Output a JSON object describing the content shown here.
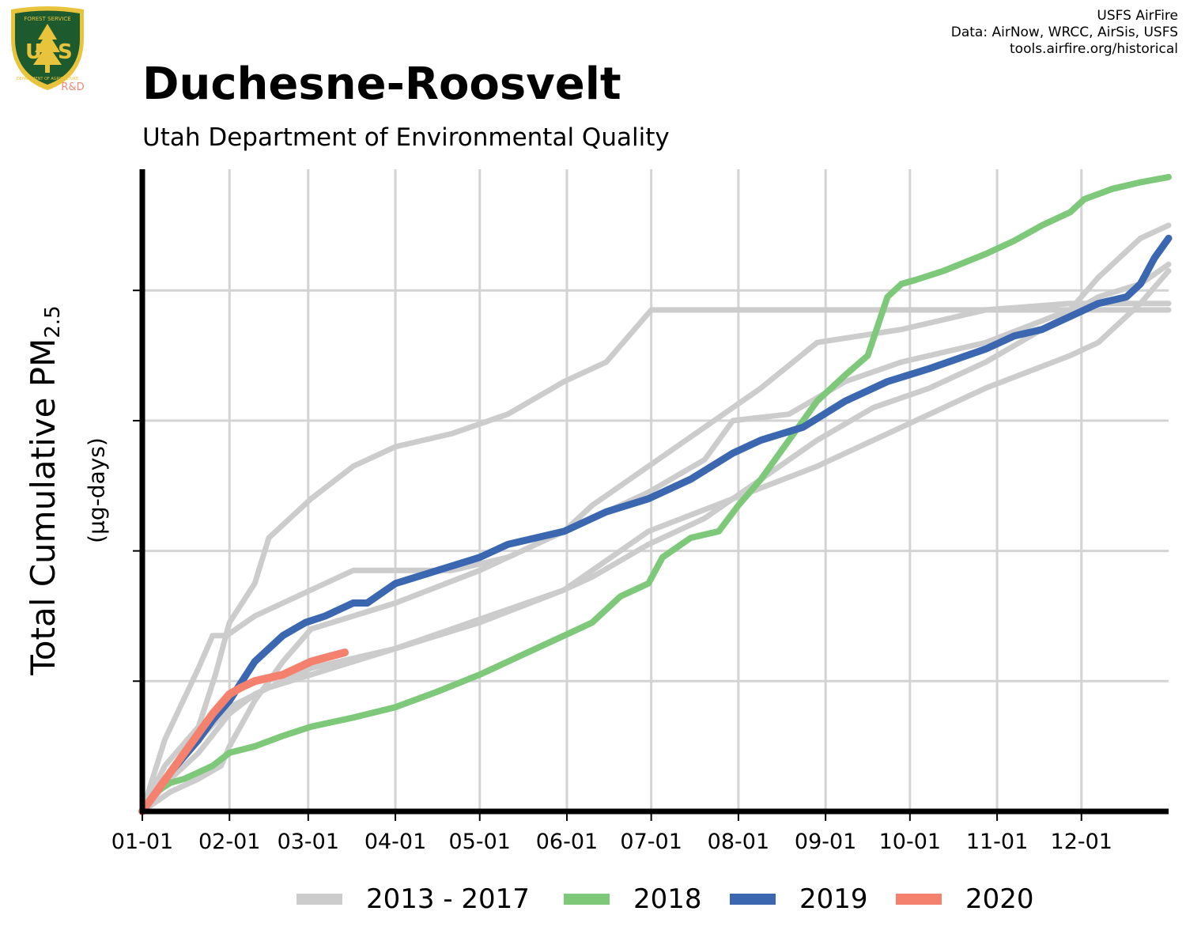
{
  "header": {
    "title": "Duchesne-Roosvelt",
    "subtitle": "Utah Department of Environmental Quality",
    "credits": [
      "USFS AirFire",
      "Data: AirNow, WRCC, AirSis, USFS",
      "tools.airfire.org/historical"
    ]
  },
  "logo": {
    "icon": "usfs-shield-icon",
    "text_top": "FOREST SERVICE",
    "letters": "US",
    "text_bottom": "DEPARTMENT OF AGRICULTURE",
    "tag": "R&D"
  },
  "colors": {
    "grid": "#d3d3d3",
    "history": "#cccccc",
    "y2018": "#7ec87a",
    "y2019": "#3a67b0",
    "y2020": "#f4806e",
    "logo_green": "#1d5a2e",
    "logo_gold": "#e8c33c",
    "logo_tag": "#f28a7a"
  },
  "chart_data": {
    "type": "line",
    "ylabel_main": "Total Cumulative PM",
    "ylabel_sub": "2.5",
    "yunit": "(µg-days)",
    "x_tick_labels": [
      "01-01",
      "02-01",
      "03-01",
      "04-01",
      "05-01",
      "06-01",
      "07-01",
      "08-01",
      "09-01",
      "10-01",
      "11-01",
      "12-01"
    ],
    "x_tick_days": [
      0,
      31,
      59,
      90,
      120,
      151,
      181,
      212,
      243,
      273,
      304,
      334
    ],
    "xlim": [
      0,
      365
    ],
    "ylim": [
      0,
      4.9
    ],
    "y_gridlines": [
      1,
      2,
      3,
      4
    ],
    "grid": true,
    "legend_position": "bottom",
    "legend": [
      "2013 - 2017",
      "2018",
      "2019",
      "2020"
    ],
    "series": [
      {
        "name": "2013 - 2017",
        "group": "history",
        "x": [
          0,
          8,
          20,
          25,
          30,
          40,
          50,
          60,
          75,
          90,
          110,
          130,
          150,
          160,
          180,
          200,
          220,
          240,
          270,
          300,
          330,
          350,
          365
        ],
        "y": [
          0,
          0.55,
          1.1,
          1.35,
          1.35,
          1.5,
          1.6,
          1.7,
          1.85,
          1.85,
          1.85,
          1.95,
          2.15,
          2.35,
          2.65,
          2.95,
          3.25,
          3.6,
          3.7,
          3.85,
          3.9,
          3.9,
          3.9
        ]
      },
      {
        "name": "2013 - 2017",
        "group": "history",
        "x": [
          0,
          8,
          20,
          26,
          31,
          40,
          45,
          50,
          60,
          75,
          90,
          110,
          130,
          150,
          165,
          181,
          200,
          220,
          240,
          270,
          300,
          330,
          350,
          365
        ],
        "y": [
          0,
          0.35,
          0.65,
          1.05,
          1.45,
          1.75,
          2.1,
          2.2,
          2.4,
          2.65,
          2.8,
          2.9,
          3.05,
          3.3,
          3.45,
          3.85,
          3.85,
          3.85,
          3.85,
          3.85,
          3.85,
          3.85,
          3.85,
          3.85
        ]
      },
      {
        "name": "2013 - 2017",
        "group": "history",
        "x": [
          0,
          10,
          20,
          28,
          31,
          40,
          50,
          60,
          90,
          120,
          150,
          180,
          200,
          210,
          230,
          250,
          270,
          300,
          330,
          340,
          355,
          365
        ],
        "y": [
          0,
          0.15,
          0.25,
          0.35,
          0.5,
          0.85,
          1.15,
          1.4,
          1.6,
          1.85,
          2.15,
          2.45,
          2.7,
          3.0,
          3.05,
          3.3,
          3.45,
          3.6,
          3.85,
          4.1,
          4.4,
          4.5
        ]
      },
      {
        "name": "2013 - 2017",
        "group": "history",
        "x": [
          0,
          10,
          20,
          31,
          40,
          50,
          60,
          90,
          120,
          150,
          180,
          210,
          240,
          270,
          300,
          330,
          340,
          355,
          365
        ],
        "y": [
          0,
          0.25,
          0.45,
          0.75,
          0.9,
          1.0,
          1.1,
          1.25,
          1.45,
          1.7,
          2.15,
          2.4,
          2.65,
          2.95,
          3.25,
          3.5,
          3.6,
          3.9,
          4.15
        ]
      },
      {
        "name": "2013 - 2017",
        "group": "history",
        "x": [
          0,
          10,
          20,
          31,
          45,
          60,
          75,
          90,
          110,
          130,
          150,
          160,
          180,
          200,
          220,
          240,
          260,
          280,
          300,
          320,
          340,
          355,
          365
        ],
        "y": [
          0,
          0.3,
          0.55,
          0.8,
          0.95,
          1.05,
          1.15,
          1.25,
          1.4,
          1.55,
          1.7,
          1.8,
          2.05,
          2.25,
          2.55,
          2.85,
          3.1,
          3.25,
          3.45,
          3.7,
          3.95,
          4.05,
          4.2
        ]
      },
      {
        "name": "2018",
        "group": "y2018",
        "x": [
          0,
          5,
          10,
          15,
          20,
          25,
          31,
          40,
          50,
          60,
          75,
          90,
          105,
          120,
          135,
          150,
          160,
          170,
          180,
          185,
          195,
          205,
          212,
          220,
          230,
          240,
          250,
          258,
          265,
          270,
          275,
          285,
          300,
          310,
          320,
          330,
          335,
          345,
          355,
          365
        ],
        "y": [
          0,
          0.15,
          0.22,
          0.25,
          0.3,
          0.35,
          0.45,
          0.5,
          0.58,
          0.65,
          0.72,
          0.8,
          0.92,
          1.05,
          1.2,
          1.35,
          1.45,
          1.65,
          1.75,
          1.95,
          2.1,
          2.15,
          2.35,
          2.55,
          2.85,
          3.15,
          3.35,
          3.5,
          3.95,
          4.05,
          4.08,
          4.15,
          4.28,
          4.38,
          4.5,
          4.6,
          4.7,
          4.78,
          4.83,
          4.87
        ]
      },
      {
        "name": "2019",
        "group": "y2019",
        "x": [
          0,
          10,
          20,
          25,
          31,
          40,
          50,
          58,
          65,
          75,
          80,
          90,
          105,
          120,
          130,
          140,
          150,
          165,
          180,
          195,
          210,
          220,
          235,
          250,
          265,
          280,
          300,
          310,
          320,
          330,
          340,
          350,
          355,
          360,
          365
        ],
        "y": [
          0,
          0.3,
          0.55,
          0.7,
          0.85,
          1.15,
          1.35,
          1.45,
          1.5,
          1.6,
          1.6,
          1.75,
          1.85,
          1.95,
          2.05,
          2.1,
          2.15,
          2.3,
          2.4,
          2.55,
          2.75,
          2.85,
          2.95,
          3.15,
          3.3,
          3.4,
          3.55,
          3.65,
          3.7,
          3.8,
          3.9,
          3.95,
          4.05,
          4.25,
          4.4
        ]
      },
      {
        "name": "2020",
        "group": "y2020",
        "x": [
          0,
          5,
          10,
          15,
          20,
          25,
          31,
          35,
          40,
          50,
          55,
          60,
          65,
          72
        ],
        "y": [
          0,
          0.15,
          0.3,
          0.45,
          0.6,
          0.75,
          0.9,
          0.95,
          1.0,
          1.05,
          1.1,
          1.15,
          1.18,
          1.22
        ]
      }
    ]
  }
}
